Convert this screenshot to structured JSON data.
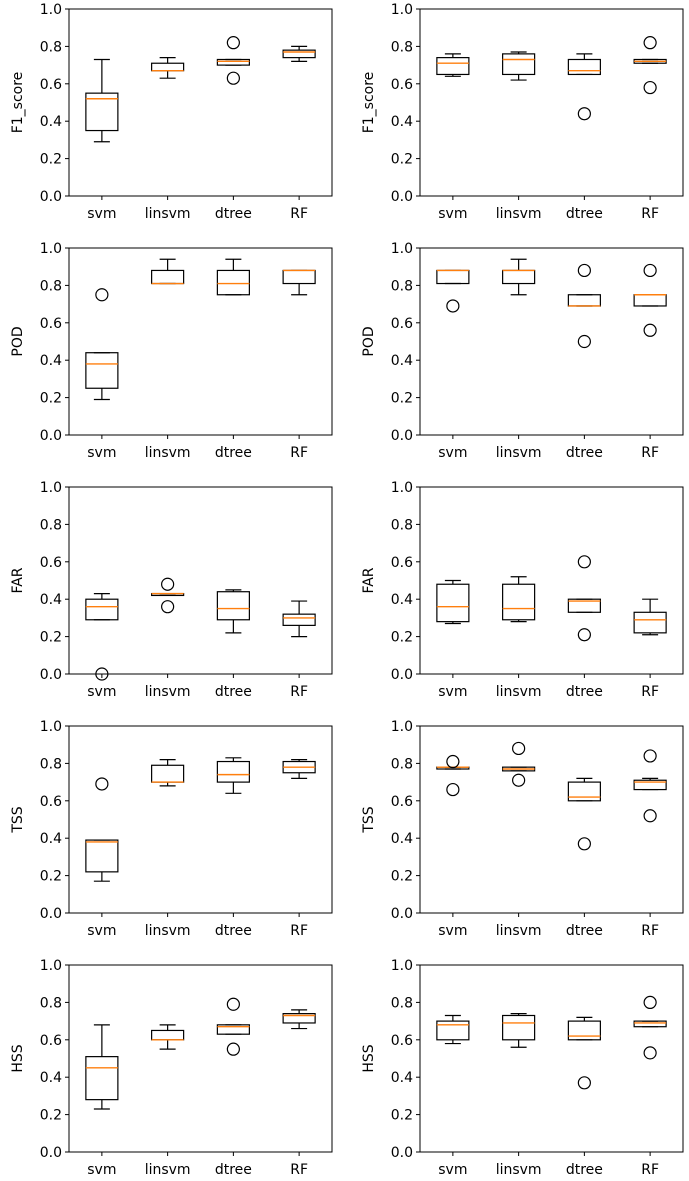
{
  "chart_data": [
    {
      "type": "box",
      "panel": "row1-left",
      "ylabel": "F1_score",
      "ylim": [
        0,
        1.0
      ],
      "yticks": [
        "0.0",
        "0.2",
        "0.4",
        "0.6",
        "0.8",
        "1.0"
      ],
      "categories": [
        "svm",
        "linsvm",
        "dtree",
        "RF"
      ],
      "boxes": [
        {
          "whislo": 0.29,
          "q1": 0.35,
          "med": 0.52,
          "q3": 0.55,
          "whishi": 0.73,
          "fliers": []
        },
        {
          "whislo": 0.63,
          "q1": 0.67,
          "med": 0.67,
          "q3": 0.71,
          "whishi": 0.74,
          "fliers": []
        },
        {
          "whislo": 0.7,
          "q1": 0.7,
          "med": 0.72,
          "q3": 0.73,
          "whishi": 0.73,
          "fliers": [
            0.82,
            0.63
          ]
        },
        {
          "whislo": 0.72,
          "q1": 0.74,
          "med": 0.77,
          "q3": 0.78,
          "whishi": 0.8,
          "fliers": []
        }
      ]
    },
    {
      "type": "box",
      "panel": "row1-right",
      "ylabel": "F1_score",
      "ylim": [
        0,
        1.0
      ],
      "yticks": [
        "0.0",
        "0.2",
        "0.4",
        "0.6",
        "0.8",
        "1.0"
      ],
      "categories": [
        "svm",
        "linsvm",
        "dtree",
        "RF"
      ],
      "boxes": [
        {
          "whislo": 0.64,
          "q1": 0.65,
          "med": 0.71,
          "q3": 0.74,
          "whishi": 0.76,
          "fliers": []
        },
        {
          "whislo": 0.62,
          "q1": 0.65,
          "med": 0.73,
          "q3": 0.76,
          "whishi": 0.77,
          "fliers": []
        },
        {
          "whislo": 0.65,
          "q1": 0.65,
          "med": 0.67,
          "q3": 0.73,
          "whishi": 0.76,
          "fliers": [
            0.44
          ]
        },
        {
          "whislo": 0.71,
          "q1": 0.71,
          "med": 0.72,
          "q3": 0.73,
          "whishi": 0.73,
          "fliers": [
            0.82,
            0.58
          ]
        }
      ]
    },
    {
      "type": "box",
      "panel": "row2-left",
      "ylabel": "POD",
      "ylim": [
        0,
        1.0
      ],
      "yticks": [
        "0.0",
        "0.2",
        "0.4",
        "0.6",
        "0.8",
        "1.0"
      ],
      "categories": [
        "svm",
        "linsvm",
        "dtree",
        "RF"
      ],
      "boxes": [
        {
          "whislo": 0.19,
          "q1": 0.25,
          "med": 0.38,
          "q3": 0.44,
          "whishi": 0.44,
          "fliers": [
            0.75
          ]
        },
        {
          "whislo": 0.81,
          "q1": 0.81,
          "med": 0.81,
          "q3": 0.88,
          "whishi": 0.94,
          "fliers": []
        },
        {
          "whislo": 0.75,
          "q1": 0.75,
          "med": 0.81,
          "q3": 0.88,
          "whishi": 0.94,
          "fliers": []
        },
        {
          "whislo": 0.75,
          "q1": 0.81,
          "med": 0.88,
          "q3": 0.88,
          "whishi": 0.88,
          "fliers": []
        }
      ]
    },
    {
      "type": "box",
      "panel": "row2-right",
      "ylabel": "POD",
      "ylim": [
        0,
        1.0
      ],
      "yticks": [
        "0.0",
        "0.2",
        "0.4",
        "0.6",
        "0.8",
        "1.0"
      ],
      "categories": [
        "svm",
        "linsvm",
        "dtree",
        "RF"
      ],
      "boxes": [
        {
          "whislo": 0.81,
          "q1": 0.81,
          "med": 0.88,
          "q3": 0.88,
          "whishi": 0.88,
          "fliers": [
            0.69
          ]
        },
        {
          "whislo": 0.75,
          "q1": 0.81,
          "med": 0.88,
          "q3": 0.88,
          "whishi": 0.94,
          "fliers": []
        },
        {
          "whislo": 0.69,
          "q1": 0.69,
          "med": 0.69,
          "q3": 0.75,
          "whishi": 0.75,
          "fliers": [
            0.88,
            0.5
          ]
        },
        {
          "whislo": 0.69,
          "q1": 0.69,
          "med": 0.75,
          "q3": 0.75,
          "whishi": 0.75,
          "fliers": [
            0.88,
            0.56
          ]
        }
      ]
    },
    {
      "type": "box",
      "panel": "row3-left",
      "ylabel": "FAR",
      "ylim": [
        0,
        1.0
      ],
      "yticks": [
        "0.0",
        "0.2",
        "0.4",
        "0.6",
        "0.8",
        "1.0"
      ],
      "categories": [
        "svm",
        "linsvm",
        "dtree",
        "RF"
      ],
      "boxes": [
        {
          "whislo": 0.29,
          "q1": 0.29,
          "med": 0.36,
          "q3": 0.4,
          "whishi": 0.43,
          "fliers": [
            0.0
          ]
        },
        {
          "whislo": 0.42,
          "q1": 0.42,
          "med": 0.43,
          "q3": 0.43,
          "whishi": 0.43,
          "fliers": [
            0.48,
            0.36
          ]
        },
        {
          "whislo": 0.22,
          "q1": 0.29,
          "med": 0.35,
          "q3": 0.44,
          "whishi": 0.45,
          "fliers": []
        },
        {
          "whislo": 0.2,
          "q1": 0.26,
          "med": 0.3,
          "q3": 0.32,
          "whishi": 0.39,
          "fliers": []
        }
      ]
    },
    {
      "type": "box",
      "panel": "row3-right",
      "ylabel": "FAR",
      "ylim": [
        0,
        1.0
      ],
      "yticks": [
        "0.0",
        "0.2",
        "0.4",
        "0.6",
        "0.8",
        "1.0"
      ],
      "categories": [
        "svm",
        "linsvm",
        "dtree",
        "RF"
      ],
      "boxes": [
        {
          "whislo": 0.27,
          "q1": 0.28,
          "med": 0.36,
          "q3": 0.48,
          "whishi": 0.5,
          "fliers": []
        },
        {
          "whislo": 0.28,
          "q1": 0.29,
          "med": 0.35,
          "q3": 0.48,
          "whishi": 0.52,
          "fliers": []
        },
        {
          "whislo": 0.33,
          "q1": 0.33,
          "med": 0.39,
          "q3": 0.4,
          "whishi": 0.4,
          "fliers": [
            0.6,
            0.21
          ]
        },
        {
          "whislo": 0.21,
          "q1": 0.22,
          "med": 0.29,
          "q3": 0.33,
          "whishi": 0.4,
          "fliers": []
        }
      ]
    },
    {
      "type": "box",
      "panel": "row4-left",
      "ylabel": "TSS",
      "ylim": [
        0,
        1.0
      ],
      "yticks": [
        "0.0",
        "0.2",
        "0.4",
        "0.6",
        "0.8",
        "1.0"
      ],
      "categories": [
        "svm",
        "linsvm",
        "dtree",
        "RF"
      ],
      "boxes": [
        {
          "whislo": 0.17,
          "q1": 0.22,
          "med": 0.38,
          "q3": 0.39,
          "whishi": 0.39,
          "fliers": [
            0.69
          ]
        },
        {
          "whislo": 0.68,
          "q1": 0.7,
          "med": 0.7,
          "q3": 0.79,
          "whishi": 0.82,
          "fliers": []
        },
        {
          "whislo": 0.64,
          "q1": 0.7,
          "med": 0.74,
          "q3": 0.81,
          "whishi": 0.83,
          "fliers": []
        },
        {
          "whislo": 0.72,
          "q1": 0.75,
          "med": 0.78,
          "q3": 0.81,
          "whishi": 0.82,
          "fliers": []
        }
      ]
    },
    {
      "type": "box",
      "panel": "row4-right",
      "ylabel": "TSS",
      "ylim": [
        0,
        1.0
      ],
      "yticks": [
        "0.0",
        "0.2",
        "0.4",
        "0.6",
        "0.8",
        "1.0"
      ],
      "categories": [
        "svm",
        "linsvm",
        "dtree",
        "RF"
      ],
      "boxes": [
        {
          "whislo": 0.77,
          "q1": 0.77,
          "med": 0.78,
          "q3": 0.78,
          "whishi": 0.78,
          "fliers": [
            0.81,
            0.66
          ]
        },
        {
          "whislo": 0.76,
          "q1": 0.76,
          "med": 0.77,
          "q3": 0.78,
          "whishi": 0.78,
          "fliers": [
            0.88,
            0.71
          ]
        },
        {
          "whislo": 0.6,
          "q1": 0.6,
          "med": 0.62,
          "q3": 0.7,
          "whishi": 0.72,
          "fliers": [
            0.37
          ]
        },
        {
          "whislo": 0.66,
          "q1": 0.66,
          "med": 0.7,
          "q3": 0.71,
          "whishi": 0.72,
          "fliers": [
            0.84,
            0.52
          ]
        }
      ]
    },
    {
      "type": "box",
      "panel": "row5-left",
      "ylabel": "HSS",
      "ylim": [
        0,
        1.0
      ],
      "yticks": [
        "0.0",
        "0.2",
        "0.4",
        "0.6",
        "0.8",
        "1.0"
      ],
      "categories": [
        "svm",
        "linsvm",
        "dtree",
        "RF"
      ],
      "boxes": [
        {
          "whislo": 0.23,
          "q1": 0.28,
          "med": 0.45,
          "q3": 0.51,
          "whishi": 0.68,
          "fliers": []
        },
        {
          "whislo": 0.55,
          "q1": 0.6,
          "med": 0.6,
          "q3": 0.65,
          "whishi": 0.68,
          "fliers": []
        },
        {
          "whislo": 0.63,
          "q1": 0.63,
          "med": 0.67,
          "q3": 0.68,
          "whishi": 0.68,
          "fliers": [
            0.79,
            0.55
          ]
        },
        {
          "whislo": 0.66,
          "q1": 0.69,
          "med": 0.73,
          "q3": 0.74,
          "whishi": 0.76,
          "fliers": []
        }
      ]
    },
    {
      "type": "box",
      "panel": "row5-right",
      "ylabel": "HSS",
      "ylim": [
        0,
        1.0
      ],
      "yticks": [
        "0.0",
        "0.2",
        "0.4",
        "0.6",
        "0.8",
        "1.0"
      ],
      "categories": [
        "svm",
        "linsvm",
        "dtree",
        "RF"
      ],
      "boxes": [
        {
          "whislo": 0.58,
          "q1": 0.6,
          "med": 0.68,
          "q3": 0.7,
          "whishi": 0.73,
          "fliers": []
        },
        {
          "whislo": 0.56,
          "q1": 0.6,
          "med": 0.69,
          "q3": 0.73,
          "whishi": 0.74,
          "fliers": []
        },
        {
          "whislo": 0.6,
          "q1": 0.6,
          "med": 0.62,
          "q3": 0.7,
          "whishi": 0.72,
          "fliers": [
            0.37
          ]
        },
        {
          "whislo": 0.67,
          "q1": 0.67,
          "med": 0.69,
          "q3": 0.7,
          "whishi": 0.7,
          "fliers": [
            0.8,
            0.53
          ]
        }
      ]
    }
  ],
  "colors": {
    "median": "#ff7f0e",
    "box": "#000000",
    "background": "#ffffff"
  }
}
